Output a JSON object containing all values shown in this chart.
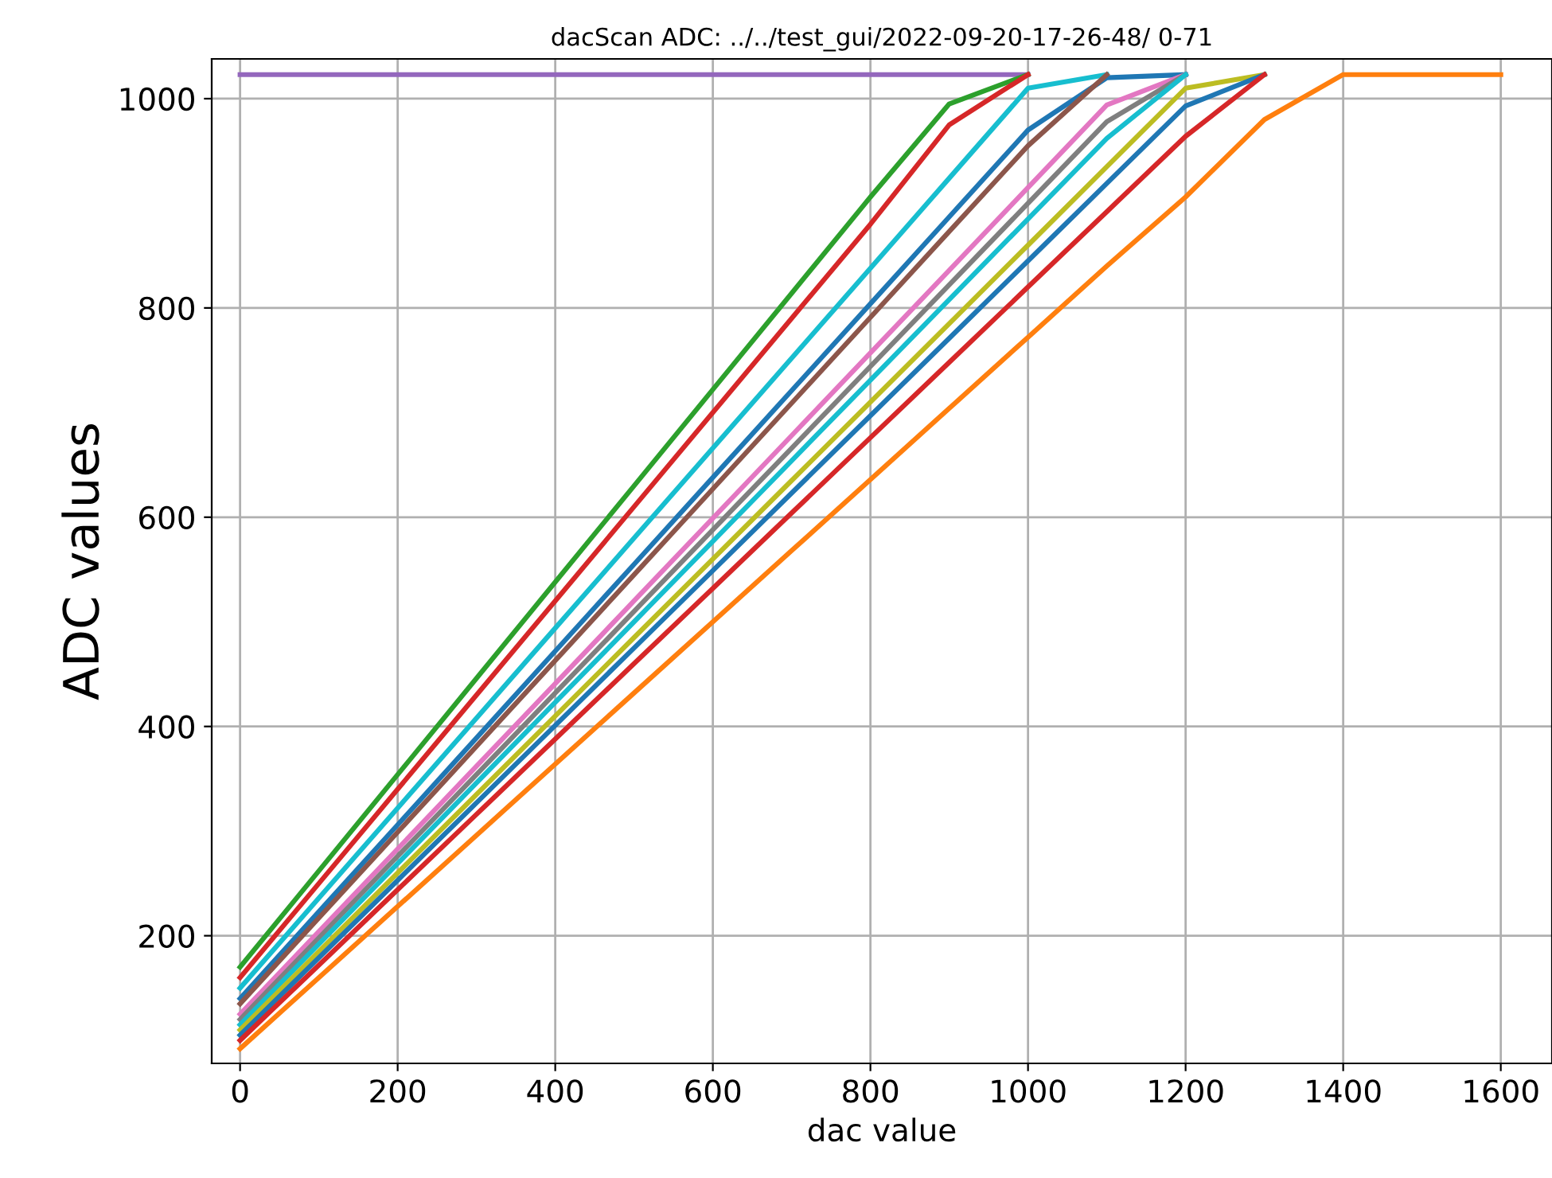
{
  "chart_data": {
    "type": "line",
    "title": "dacScan ADC: ../../test_gui/2022-09-20-17-26-48/ 0-71",
    "xlabel": "dac value",
    "ylabel": "ADC values",
    "x": [
      0,
      100,
      200,
      300,
      400,
      500,
      600,
      700,
      800,
      900,
      1000,
      1100,
      1200,
      1300,
      1400,
      1500,
      1600
    ],
    "series": [
      {
        "color": "#9467bd",
        "values": [
          1023,
          1023,
          1023,
          1023,
          1023,
          1023,
          1023,
          1023,
          1023,
          1023,
          1023,
          null,
          null,
          null,
          null,
          null,
          null
        ]
      },
      {
        "color": "#2ca02c",
        "values": [
          170,
          262,
          354,
          446,
          538,
          630,
          722,
          814,
          906,
          995,
          1023,
          null,
          null,
          null,
          null,
          null,
          null
        ]
      },
      {
        "color": "#d62728",
        "values": [
          160,
          250,
          340,
          430,
          520,
          610,
          700,
          790,
          880,
          975,
          1023,
          null,
          null,
          null,
          null,
          null,
          null
        ]
      },
      {
        "color": "#17becf",
        "values": [
          150,
          236,
          322,
          408,
          494,
          580,
          666,
          752,
          838,
          924,
          1010,
          1023,
          null,
          null,
          null,
          null,
          null
        ]
      },
      {
        "color": "#1f77b4",
        "values": [
          140,
          223,
          306,
          389,
          472,
          555,
          638,
          721,
          804,
          887,
          970,
          1020,
          1023,
          null,
          null,
          null,
          null
        ]
      },
      {
        "color": "#8c564b",
        "values": [
          135,
          217,
          299,
          381,
          463,
          545,
          627,
          709,
          791,
          873,
          955,
          1023,
          null,
          null,
          null,
          null,
          null
        ]
      },
      {
        "color": "#e377c2",
        "values": [
          125,
          204,
          283,
          362,
          441,
          520,
          599,
          678,
          757,
          836,
          915,
          994,
          1023,
          null,
          null,
          null,
          null
        ]
      },
      {
        "color": "#7f7f7f",
        "values": [
          120,
          198,
          276,
          354,
          432,
          510,
          588,
          666,
          744,
          822,
          900,
          978,
          1023,
          null,
          null,
          null,
          null
        ]
      },
      {
        "color": "#17becf",
        "values": [
          115,
          192,
          269,
          346,
          423,
          500,
          577,
          654,
          731,
          808,
          885,
          962,
          1023,
          null,
          null,
          null,
          null
        ]
      },
      {
        "color": "#bcbd22",
        "values": [
          110,
          185,
          260,
          335,
          410,
          485,
          560,
          635,
          710,
          785,
          860,
          935,
          1010,
          1023,
          null,
          null,
          null
        ]
      },
      {
        "color": "#1f77b4",
        "values": [
          105,
          179,
          253,
          327,
          401,
          475,
          549,
          623,
          697,
          771,
          845,
          919,
          993,
          1023,
          null,
          null,
          null
        ]
      },
      {
        "color": "#d62728",
        "values": [
          100,
          172,
          244,
          316,
          388,
          460,
          532,
          604,
          676,
          748,
          820,
          892,
          964,
          1023,
          null,
          null,
          null
        ]
      },
      {
        "color": "#ff7f0e",
        "values": [
          92,
          160,
          228,
          296,
          364,
          432,
          500,
          568,
          636,
          704,
          772,
          840,
          906,
          980,
          1023,
          1023,
          1023
        ]
      }
    ],
    "xlim": [
      -36,
      1665
    ],
    "ylim": [
      78,
      1038
    ],
    "xticks": [
      0,
      200,
      400,
      600,
      800,
      1000,
      1200,
      1400,
      1600
    ],
    "yticks": [
      200,
      400,
      600,
      800,
      1000
    ],
    "grid": true,
    "line_style": "solid",
    "marker": "none"
  }
}
